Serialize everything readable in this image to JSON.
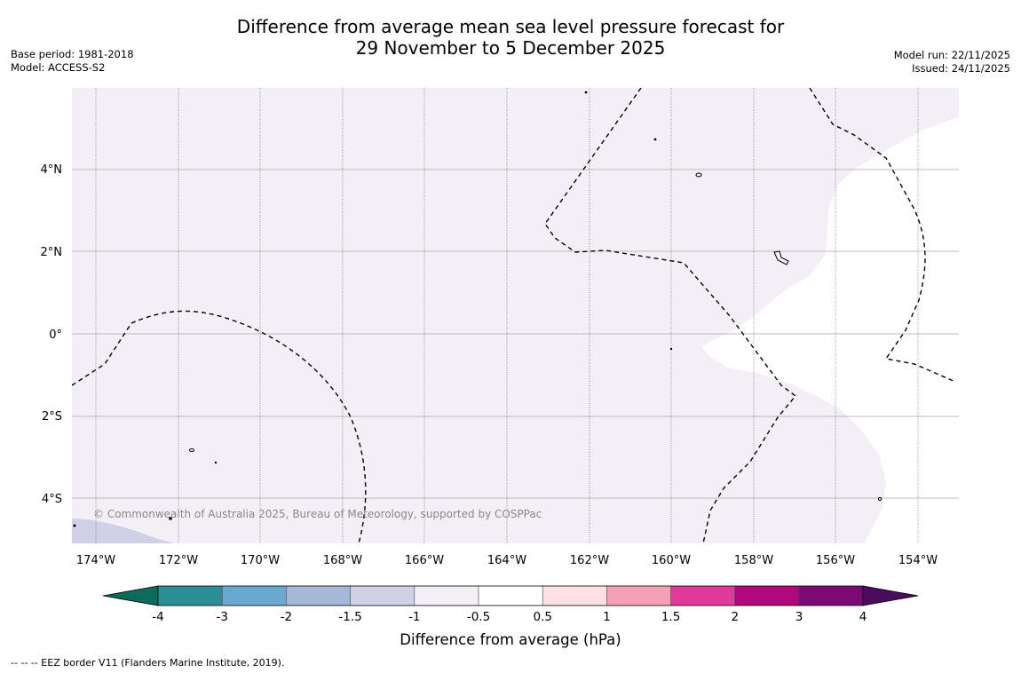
{
  "title_line1": "Difference from average mean sea level pressure forecast for",
  "title_line2": "29 November to 5 December 2025",
  "base_period": "Base period: 1981-2018",
  "model": "Model: ACCESS-S2",
  "model_run": "Model run: 22/11/2025",
  "issued": "Issued: 24/11/2025",
  "copyright": "© Commonwealth of Australia 2025, Bureau of Meteorology, supported by COSPPac",
  "footer": "--  --  -- EEZ border V11 (Flanders Marine Institute, 2019).",
  "colorbar": {
    "title": "Difference from average (hPa)",
    "tick_labels": [
      "-4",
      "-3",
      "-2",
      "-1.5",
      "-1",
      "-0.5",
      "0.5",
      "1",
      "1.5",
      "2",
      "3",
      "4"
    ],
    "colors": [
      "#0d6b5c",
      "#2a8f94",
      "#6aa9cf",
      "#a5b8d8",
      "#d0d0e6",
      "#f4eef7",
      "#ffffff",
      "#fde1e2",
      "#f6a0b6",
      "#e03b9a",
      "#b0097e",
      "#7b0a74",
      "#4b0b5e"
    ]
  },
  "map": {
    "x_ticks": [
      "174°W",
      "172°W",
      "170°W",
      "168°W",
      "166°W",
      "164°W",
      "162°W",
      "160°W",
      "158°W",
      "156°W",
      "154°W"
    ],
    "y_ticks": [
      "4°N",
      "2°N",
      "0°",
      "2°S",
      "4°S"
    ],
    "lon_range": [
      -174.6,
      -153.0
    ],
    "lat_range": [
      -5.2,
      5.9
    ],
    "background_category": "-1 to -0.5 hPa",
    "regions": [
      "0.5 to -0.5 hPa (white) east of 159°W",
      "-1.5 to -1 hPa (light blue-grey) near 174°W 5°S"
    ]
  }
}
